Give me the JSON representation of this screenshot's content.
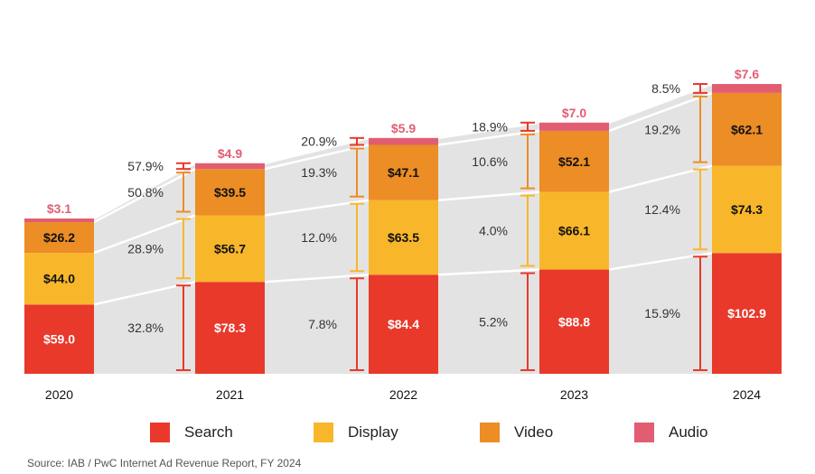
{
  "colors": {
    "search": "#E8392B",
    "display": "#F8B72B",
    "video": "#EC8D25",
    "audio": "#E25D72",
    "band": "#E3E3E3",
    "total_label": "#E25D72",
    "growth_bracket": "#E8392B"
  },
  "chart_data": {
    "type": "bar",
    "stacked": true,
    "units": "$B",
    "categories": [
      "2020",
      "2021",
      "2022",
      "2023",
      "2024"
    ],
    "series": [
      {
        "name": "Search",
        "key": "search",
        "values": [
          59.0,
          78.3,
          84.4,
          88.8,
          102.9
        ],
        "labels": [
          "$59.0",
          "$78.3",
          "$84.4",
          "$88.8",
          "$102.9"
        ]
      },
      {
        "name": "Display",
        "key": "display",
        "values": [
          44.0,
          56.7,
          63.5,
          66.1,
          74.3
        ],
        "labels": [
          "$44.0",
          "$56.7",
          "$63.5",
          "$66.1",
          "$74.3"
        ]
      },
      {
        "name": "Video",
        "key": "video",
        "values": [
          26.2,
          39.5,
          47.1,
          52.1,
          62.1
        ],
        "labels": [
          "$26.2",
          "$39.5",
          "$47.1",
          "$52.1",
          "$62.1"
        ]
      },
      {
        "name": "Audio",
        "key": "audio",
        "values": [
          3.1,
          4.9,
          5.9,
          7.0,
          7.6
        ],
        "labels": [
          "$3.1",
          "$4.9",
          "$5.9",
          "$7.0",
          "$7.6"
        ]
      }
    ],
    "growth_labels": {
      "search": [
        "32.8%",
        "7.8%",
        "5.2%",
        "15.9%"
      ],
      "display": [
        "28.9%",
        "12.0%",
        "4.0%",
        "12.4%"
      ],
      "video": [
        "50.8%",
        "19.3%",
        "10.6%",
        "19.2%"
      ],
      "audio": [
        "57.9%",
        "20.9%",
        "18.9%",
        "8.5%"
      ]
    },
    "legend_position": "bottom",
    "xlabel": "",
    "ylabel": "",
    "source": "Source: IAB / PwC Internet Ad Revenue Report, FY 2024"
  }
}
